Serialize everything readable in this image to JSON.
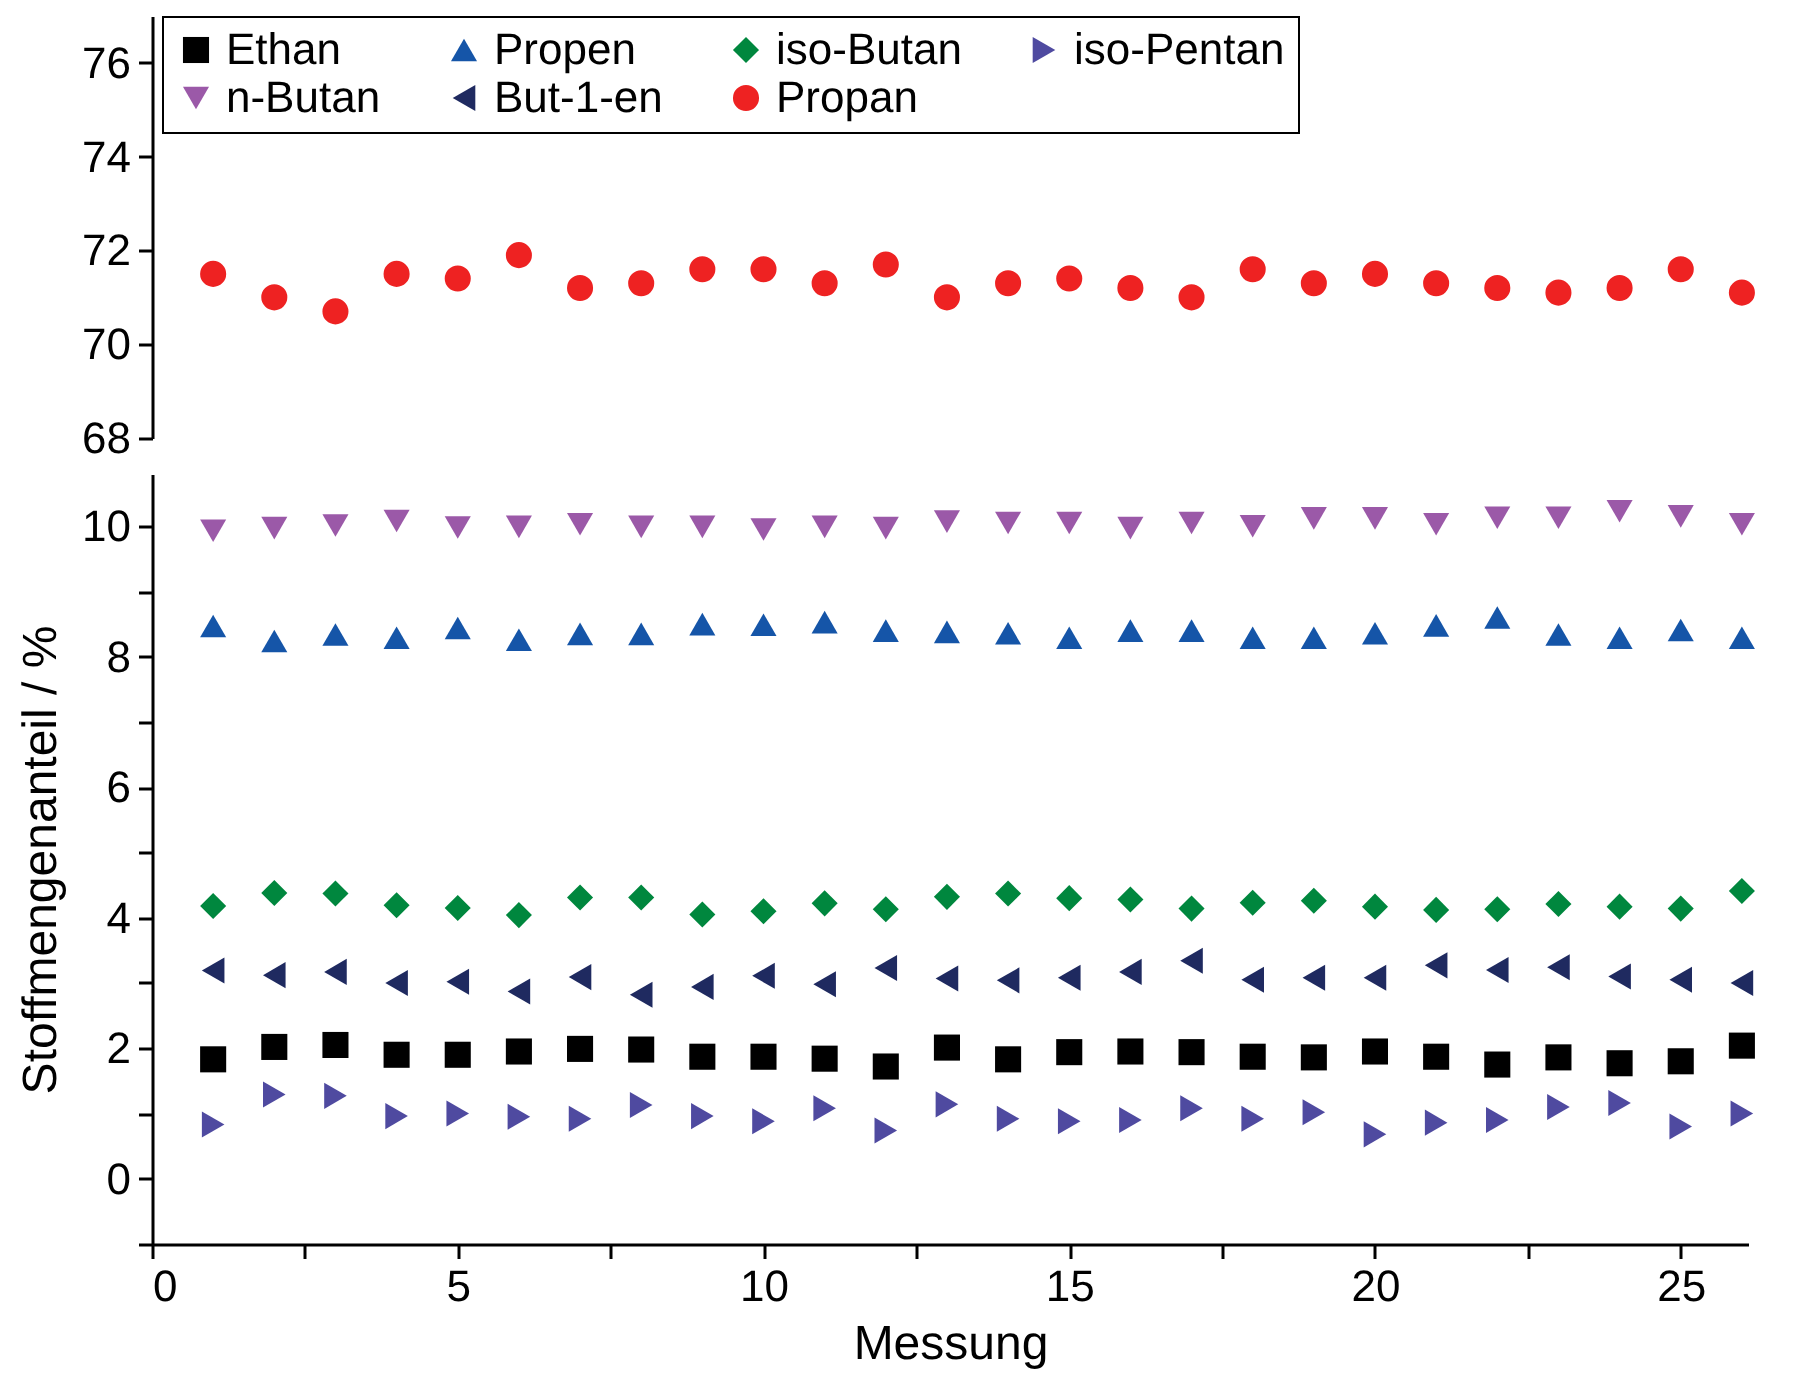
{
  "chart_data": [
    {
      "type": "scatter",
      "x": [
        1,
        2,
        3,
        4,
        5,
        6,
        7,
        8,
        9,
        10,
        11,
        12,
        13,
        14,
        15,
        16,
        17,
        18,
        19,
        20,
        21,
        22,
        23,
        24,
        25,
        26
      ],
      "ylim": [
        68,
        77
      ],
      "yticks": [
        68,
        70,
        72,
        74,
        76
      ],
      "tick_labels": "y",
      "grid": false,
      "legend": "top",
      "series": [
        {
          "name": "Propan",
          "color": "#ee2222",
          "marker": "circle",
          "values": [
            71.5,
            71.0,
            70.7,
            71.5,
            71.4,
            71.9,
            71.2,
            71.3,
            71.6,
            71.6,
            71.3,
            71.7,
            71.0,
            71.3,
            71.4,
            71.2,
            71.0,
            71.6,
            71.3,
            71.5,
            71.3,
            71.2,
            71.1,
            71.2,
            71.6,
            71.1
          ]
        }
      ]
    },
    {
      "type": "scatter",
      "x": [
        1,
        2,
        3,
        4,
        5,
        6,
        7,
        8,
        9,
        10,
        11,
        12,
        13,
        14,
        15,
        16,
        17,
        18,
        19,
        20,
        21,
        22,
        23,
        24,
        25,
        26
      ],
      "xlabel": "Messung",
      "ylabel": "Stoffmengenanteil / %",
      "xlim": [
        0,
        26.1
      ],
      "xticks": [
        0,
        {
          "value": 2.5,
          "label": null
        },
        5,
        {
          "value": 7.5,
          "label": null
        },
        10,
        {
          "value": 12.5,
          "label": null
        },
        15,
        {
          "value": 17.5,
          "label": null
        },
        20,
        {
          "value": 22.5,
          "label": null
        },
        25
      ],
      "ylim": [
        -1,
        10.8
      ],
      "legend": "top",
      "yticks": [
        {
          "value": -1,
          "label": null
        },
        0,
        {
          "value": 1,
          "label": null
        },
        2,
        {
          "value": 3,
          "label": null
        },
        4,
        {
          "value": 5,
          "label": null
        },
        6,
        {
          "value": 7,
          "label": null
        },
        8,
        {
          "value": 9,
          "label": null
        },
        10
      ],
      "grid": false,
      "series": [
        {
          "name": "Ethan",
          "color": "#000000",
          "marker": "square",
          "values": [
            1.83,
            2.02,
            2.05,
            1.9,
            1.9,
            1.95,
            1.99,
            1.98,
            1.87,
            1.87,
            1.84,
            1.72,
            2.01,
            1.83,
            1.94,
            1.95,
            1.94,
            1.87,
            1.86,
            1.95,
            1.87,
            1.75,
            1.86,
            1.77,
            1.8,
            2.04
          ]
        },
        {
          "name": "Propen",
          "color": "#1555a8",
          "marker": "triangle-up",
          "values": [
            8.47,
            8.24,
            8.34,
            8.29,
            8.44,
            8.26,
            8.35,
            8.35,
            8.5,
            8.49,
            8.53,
            8.4,
            8.38,
            8.36,
            8.29,
            8.4,
            8.4,
            8.29,
            8.29,
            8.36,
            8.48,
            8.6,
            8.34,
            8.29,
            8.41,
            8.29
          ]
        },
        {
          "name": "iso-Butan",
          "color": "#00873e",
          "marker": "diamond",
          "values": [
            4.18,
            4.38,
            4.37,
            4.19,
            4.15,
            4.04,
            4.31,
            4.31,
            4.05,
            4.1,
            4.22,
            4.13,
            4.32,
            4.37,
            4.3,
            4.28,
            4.14,
            4.23,
            4.26,
            4.17,
            4.12,
            4.13,
            4.21,
            4.17,
            4.14,
            4.41
          ]
        },
        {
          "name": "iso-Pentan",
          "color": "#4f4aa0",
          "marker": "triangle-right",
          "values": [
            0.83,
            1.29,
            1.27,
            0.96,
            1.0,
            0.95,
            0.92,
            1.13,
            0.96,
            0.88,
            1.08,
            0.74,
            1.14,
            0.92,
            0.88,
            0.9,
            1.08,
            0.92,
            1.02,
            0.68,
            0.86,
            0.9,
            1.1,
            1.16,
            0.8,
            1.0
          ]
        },
        {
          "name": "n-Butan",
          "color": "#9b59a8",
          "marker": "triangle-down",
          "values": [
            9.93,
            9.97,
            10.01,
            10.08,
            9.98,
            9.99,
            10.03,
            9.99,
            9.99,
            9.95,
            9.99,
            9.97,
            10.07,
            10.05,
            10.05,
            9.97,
            10.05,
            10.0,
            10.12,
            10.12,
            10.03,
            10.13,
            10.13,
            10.23,
            10.15,
            10.03
          ]
        },
        {
          "name": "But-1-en",
          "color": "#1f2a60",
          "marker": "triangle-left",
          "values": [
            3.19,
            3.12,
            3.17,
            3.0,
            3.02,
            2.87,
            3.09,
            2.82,
            2.94,
            3.11,
            2.98,
            3.23,
            3.07,
            3.04,
            3.08,
            3.17,
            3.34,
            3.05,
            3.08,
            3.08,
            3.27,
            3.2,
            3.24,
            3.1,
            3.05,
            3.0
          ]
        }
      ]
    }
  ]
}
